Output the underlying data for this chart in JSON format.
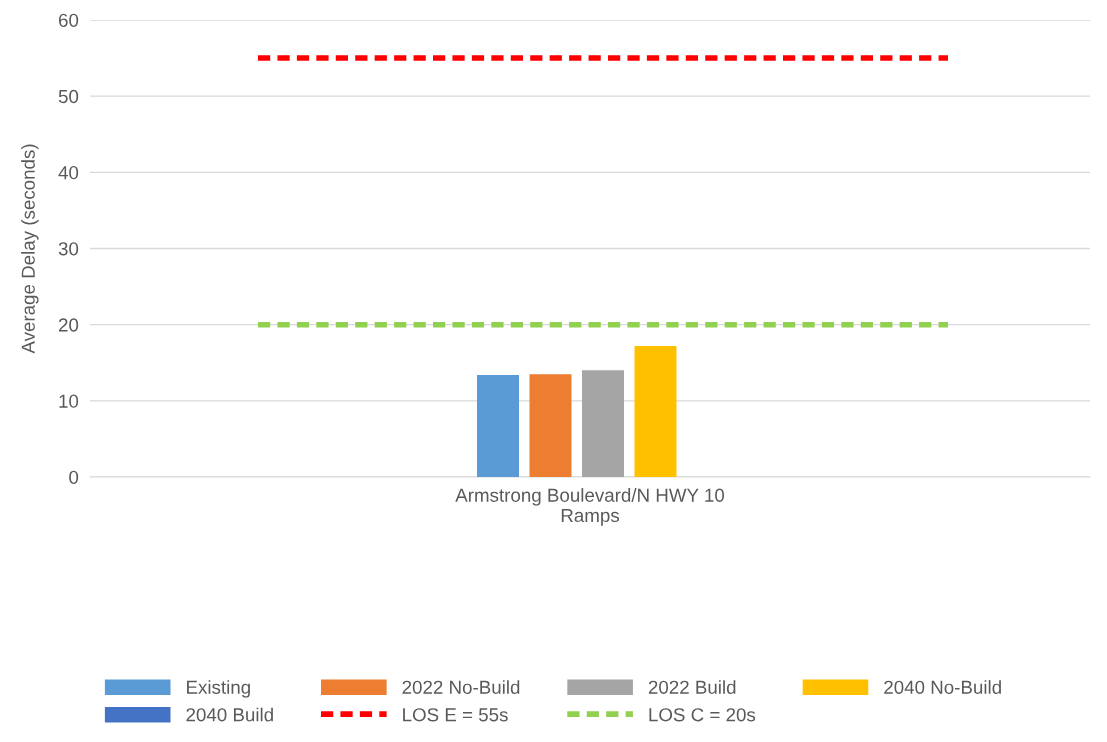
{
  "chart_data": {
    "type": "bar",
    "ylabel": "Average Delay (seconds)",
    "categories": [
      "Armstrong Boulevard/N HWY 10 Ramps"
    ],
    "series": [
      {
        "name": "Existing",
        "color": "#5b9bd5",
        "values": [
          13.4
        ]
      },
      {
        "name": "2022 No-Build",
        "color": "#ed7d31",
        "values": [
          13.5
        ]
      },
      {
        "name": "2022 Build",
        "color": "#a5a5a5",
        "values": [
          14.0
        ]
      },
      {
        "name": "2040 No-Build",
        "color": "#ffc000",
        "values": [
          17.2
        ]
      },
      {
        "name": "2040 Build",
        "color": "#4472c4",
        "values": [
          null
        ]
      }
    ],
    "ref_lines": [
      {
        "axis": "y",
        "value": 55,
        "label": "LOS E = 55s",
        "color": "#ff0000",
        "line_style": "dashed"
      },
      {
        "axis": "y",
        "value": 20,
        "label": "LOS C = 20s",
        "color": "#92d050",
        "line_style": "dashed"
      }
    ],
    "ylim": [
      0,
      60
    ],
    "yticks": [
      0,
      10,
      20,
      30,
      40,
      50,
      60
    ],
    "grid": "y",
    "legend": "bottom"
  }
}
